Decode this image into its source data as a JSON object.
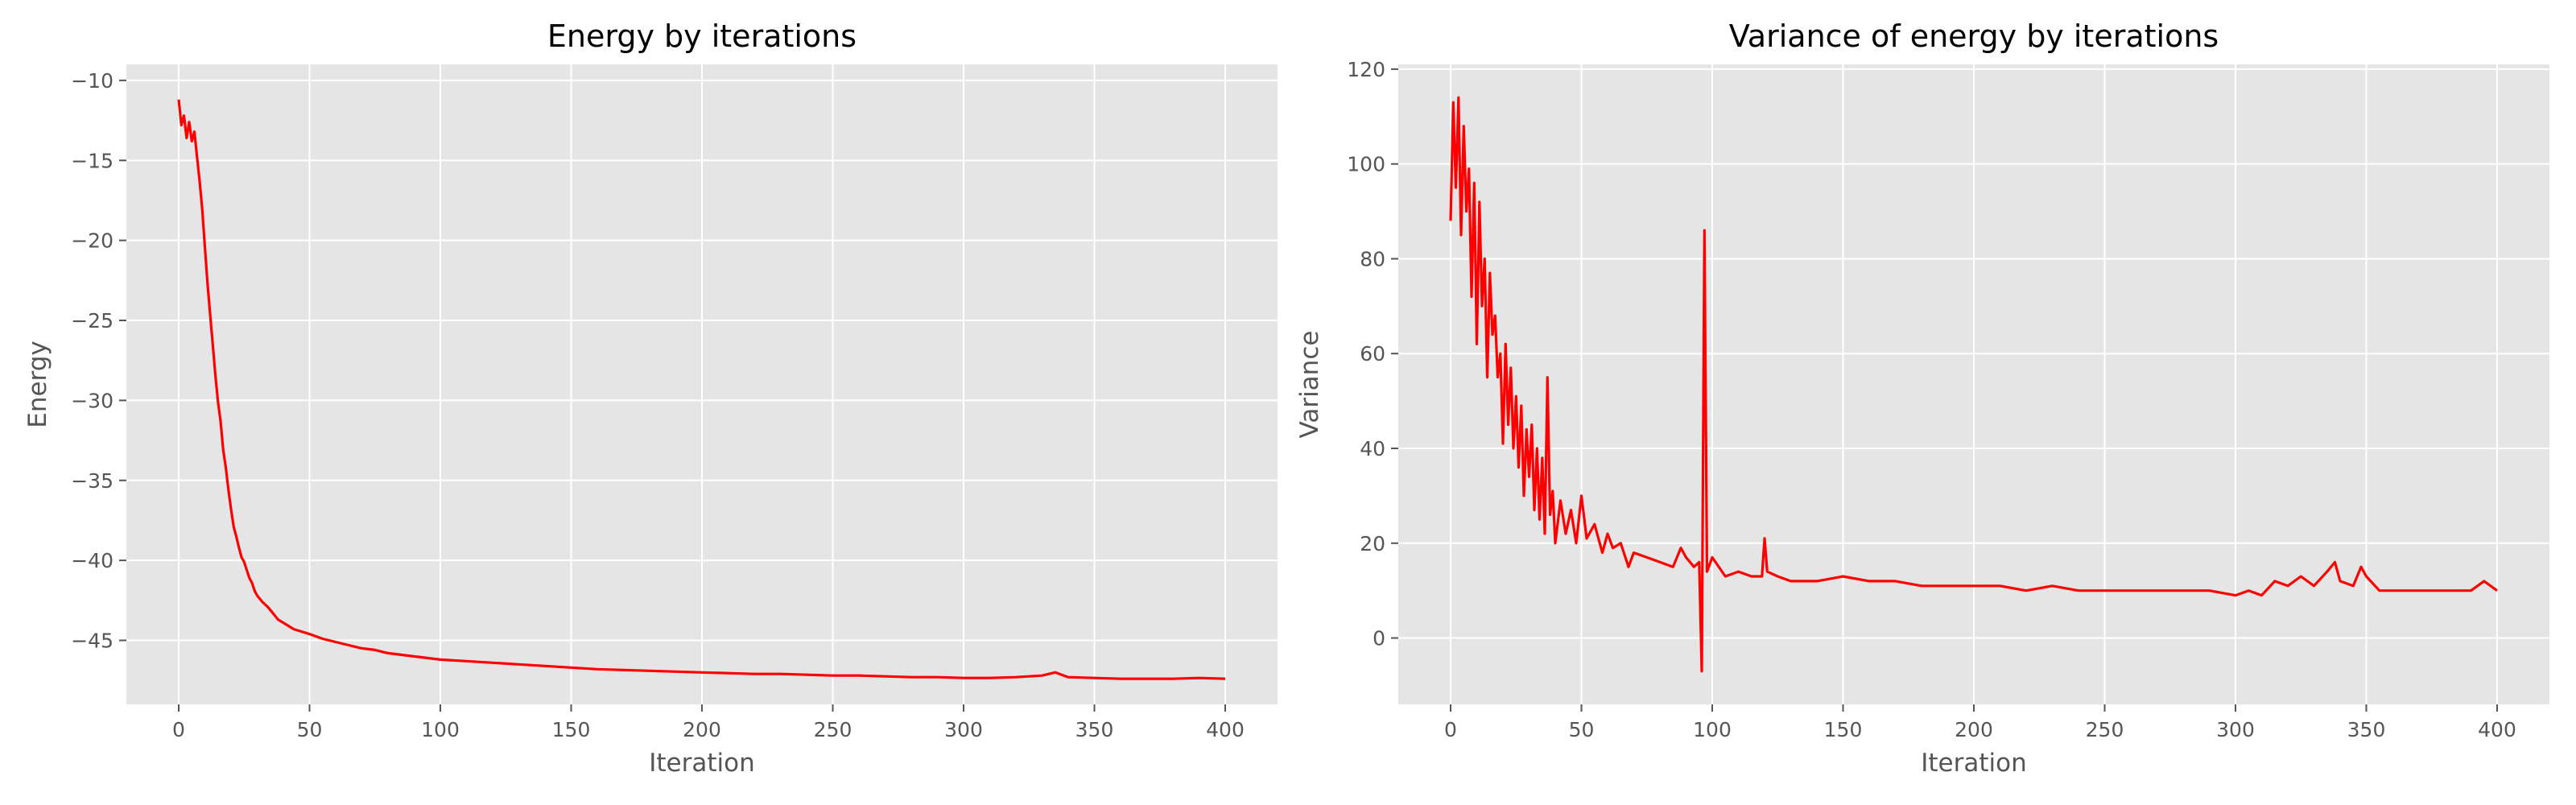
{
  "colors": {
    "figure_background": "#ffffff",
    "axes_background": "#e5e5e5",
    "grid": "#ffffff",
    "line": "#ff0000",
    "tick_text": "#555555",
    "title_text": "#000000"
  },
  "chart_data": [
    {
      "type": "line",
      "title": "Energy by iterations",
      "xlabel": "Iteration",
      "ylabel": "Energy",
      "xlim": [
        -20,
        420
      ],
      "ylim": [
        -49,
        -9
      ],
      "xticks": [
        0,
        50,
        100,
        150,
        200,
        250,
        300,
        350,
        400
      ],
      "yticks": [
        -45,
        -40,
        -35,
        -30,
        -25,
        -20,
        -15,
        -10
      ],
      "xtick_labels": [
        "0",
        "50",
        "100",
        "150",
        "200",
        "250",
        "300",
        "350",
        "400"
      ],
      "ytick_labels": [
        "−45",
        "−40",
        "−35",
        "−30",
        "−25",
        "−20",
        "−15",
        "−10"
      ],
      "grid": true,
      "series": [
        {
          "color": "#ff0000",
          "x": [
            0,
            1,
            2,
            3,
            4,
            5,
            6,
            7,
            8,
            9,
            10,
            11,
            12,
            13,
            14,
            15,
            16,
            17,
            18,
            19,
            20,
            21,
            22,
            23,
            24,
            25,
            26,
            27,
            28,
            29,
            30,
            32,
            34,
            36,
            38,
            40,
            42,
            44,
            46,
            48,
            50,
            55,
            60,
            65,
            70,
            75,
            80,
            85,
            90,
            95,
            100,
            110,
            120,
            130,
            140,
            150,
            160,
            170,
            180,
            190,
            200,
            210,
            220,
            230,
            240,
            250,
            260,
            270,
            280,
            290,
            300,
            310,
            320,
            330,
            335,
            340,
            350,
            360,
            370,
            380,
            390,
            400
          ],
          "y": [
            -11.2,
            -12.8,
            -12.2,
            -13.6,
            -12.6,
            -13.8,
            -13.2,
            -14.8,
            -16.3,
            -18.1,
            -20.4,
            -22.7,
            -24.6,
            -26.5,
            -28.4,
            -30.1,
            -31.3,
            -33.1,
            -34.2,
            -35.6,
            -36.8,
            -37.9,
            -38.5,
            -39.2,
            -39.8,
            -40.1,
            -40.6,
            -41.1,
            -41.4,
            -41.9,
            -42.2,
            -42.6,
            -42.9,
            -43.3,
            -43.7,
            -43.9,
            -44.1,
            -44.3,
            -44.4,
            -44.5,
            -44.6,
            -44.9,
            -45.1,
            -45.3,
            -45.5,
            -45.6,
            -45.8,
            -45.9,
            -46.0,
            -46.1,
            -46.2,
            -46.3,
            -46.4,
            -46.5,
            -46.6,
            -46.7,
            -46.8,
            -46.85,
            -46.9,
            -46.95,
            -47.0,
            -47.05,
            -47.1,
            -47.1,
            -47.15,
            -47.2,
            -47.2,
            -47.25,
            -47.3,
            -47.3,
            -47.35,
            -47.35,
            -47.3,
            -47.2,
            -47.0,
            -47.3,
            -47.35,
            -47.4,
            -47.4,
            -47.4,
            -47.35,
            -47.4
          ]
        }
      ]
    },
    {
      "type": "line",
      "title": "Variance of energy by iterations",
      "xlabel": "Iteration",
      "ylabel": "Variance",
      "xlim": [
        -20,
        420
      ],
      "ylim": [
        -14,
        121
      ],
      "xticks": [
        0,
        50,
        100,
        150,
        200,
        250,
        300,
        350,
        400
      ],
      "yticks": [
        0,
        20,
        40,
        60,
        80,
        100,
        120
      ],
      "xtick_labels": [
        "0",
        "50",
        "100",
        "150",
        "200",
        "250",
        "300",
        "350",
        "400"
      ],
      "ytick_labels": [
        "0",
        "20",
        "40",
        "60",
        "80",
        "100",
        "120"
      ],
      "grid": true,
      "series": [
        {
          "color": "#ff0000",
          "x": [
            0,
            1,
            2,
            3,
            4,
            5,
            6,
            7,
            8,
            9,
            10,
            11,
            12,
            13,
            14,
            15,
            16,
            17,
            18,
            19,
            20,
            21,
            22,
            23,
            24,
            25,
            26,
            27,
            28,
            29,
            30,
            31,
            32,
            33,
            34,
            35,
            36,
            37,
            38,
            39,
            40,
            42,
            44,
            46,
            48,
            50,
            52,
            55,
            58,
            60,
            62,
            65,
            68,
            70,
            75,
            80,
            85,
            88,
            90,
            93,
            95,
            96,
            97,
            98,
            100,
            105,
            110,
            115,
            119,
            120,
            121,
            125,
            130,
            140,
            150,
            160,
            170,
            180,
            190,
            200,
            210,
            220,
            230,
            240,
            250,
            260,
            270,
            280,
            290,
            300,
            305,
            310,
            315,
            320,
            325,
            330,
            335,
            338,
            340,
            345,
            348,
            350,
            355,
            360,
            370,
            380,
            390,
            395,
            400
          ],
          "y": [
            88,
            113,
            95,
            114,
            85,
            108,
            90,
            99,
            72,
            96,
            62,
            92,
            70,
            80,
            55,
            77,
            64,
            68,
            55,
            60,
            41,
            62,
            45,
            57,
            40,
            51,
            36,
            49,
            30,
            44,
            34,
            45,
            27,
            40,
            25,
            38,
            22,
            55,
            26,
            31,
            20,
            29,
            22,
            27,
            20,
            30,
            21,
            24,
            18,
            22,
            19,
            20,
            15,
            18,
            17,
            16,
            15,
            19,
            17,
            15,
            16,
            -7,
            86,
            14,
            17,
            13,
            14,
            13,
            13,
            21,
            14,
            13,
            12,
            12,
            13,
            12,
            12,
            11,
            11,
            11,
            11,
            10,
            11,
            10,
            10,
            10,
            10,
            10,
            10,
            9,
            10,
            9,
            12,
            11,
            13,
            11,
            14,
            16,
            12,
            11,
            15,
            13,
            10,
            10,
            10,
            10,
            10,
            12,
            10
          ]
        }
      ]
    }
  ]
}
